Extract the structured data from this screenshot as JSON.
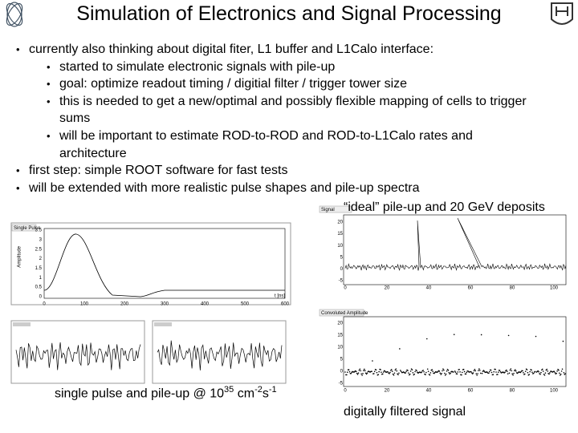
{
  "header": {
    "title": "Simulation of Electronics and Signal Processing"
  },
  "bullets": [
    {
      "level": 1,
      "text": "currently also thinking about digital fiter, L1 buffer and L1Calo interface:"
    },
    {
      "level": 2,
      "text": "started to simulate electronic signals with pile-up"
    },
    {
      "level": 2,
      "text": "goal: optimize readout timing / digitial filter / trigger tower size"
    },
    {
      "level": 2,
      "text": "this is needed to get a new/optimal and possibly flexible mapping of cells to trigger sums"
    },
    {
      "level": 2,
      "text": "will be important to estimate ROD-to-ROD and ROD-to-L1Calo rates and architecture"
    },
    {
      "level": 1,
      "text": "first step: simple ROOT software for fast tests"
    },
    {
      "level": 1,
      "text": "will be extended with more realistic pulse shapes and pile-up spectra"
    }
  ],
  "captions": {
    "ideal": "“ideal” pile-up and 20 GeV deposits",
    "pileup": [
      "single pulse and pile-up @ 10",
      "35",
      " cm",
      "-2",
      "s",
      "-1"
    ],
    "filtered": "digitally filtered signal"
  },
  "plots": [
    {
      "title": "Single Pulse",
      "x_label": "t [ns]",
      "y_label": "Amplitude",
      "yticks": [
        3.5,
        3,
        2.5,
        2,
        1.5,
        1,
        0.5,
        0
      ],
      "xticks": [
        0,
        100,
        200,
        300,
        400,
        500,
        600
      ]
    },
    {
      "title": "Signal",
      "yticks": [
        20,
        15,
        10,
        5,
        0,
        -5
      ],
      "xticks": [
        0,
        20,
        40,
        60,
        80,
        100
      ]
    },
    {
      "title": "Convoluted Amplitude",
      "yticks": [
        20,
        15,
        10,
        5,
        0,
        -5
      ],
      "xticks": [
        0,
        20,
        40,
        60,
        80,
        100
      ]
    }
  ]
}
